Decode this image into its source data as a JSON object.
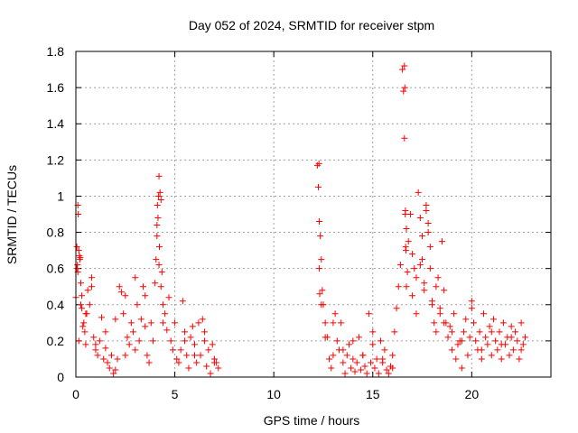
{
  "chart_data": {
    "type": "scatter",
    "title": "Day 052 of 2024, SRMTID for receiver stpm",
    "xlabel": "GPS time / hours",
    "ylabel": "SRMTID / TECUs",
    "xlim": [
      0,
      24
    ],
    "ylim": [
      0,
      1.8
    ],
    "xticks": [
      0,
      5,
      10,
      15,
      20
    ],
    "yticks": [
      0,
      0.2,
      0.4,
      0.6,
      0.8,
      1,
      1.2,
      1.4,
      1.6,
      1.8
    ],
    "ytick_labels": [
      "0",
      "0.2",
      "0.4",
      "0.6",
      "0.8",
      "1",
      "1.2",
      "1.4",
      "1.6",
      "1.8"
    ],
    "grid": true,
    "marker": "plus",
    "color": "#ff0000",
    "series": [
      {
        "name": "SRMTID",
        "x": [
          0.0,
          0.05,
          0.1,
          0.12,
          0.15,
          0.18,
          0.2,
          0.22,
          0.25,
          0.3,
          0.35,
          0.4,
          0.45,
          0.5,
          0.55,
          0.6,
          0.7,
          0.8,
          0.9,
          1.0,
          1.1,
          1.2,
          1.3,
          1.4,
          1.5,
          1.6,
          1.7,
          1.8,
          1.9,
          2.0,
          2.1,
          2.2,
          2.3,
          2.4,
          2.5,
          2.6,
          2.7,
          2.8,
          2.9,
          3.0,
          3.1,
          3.2,
          3.3,
          3.4,
          3.5,
          3.6,
          3.7,
          3.8,
          3.9,
          4.0,
          4.05,
          4.1,
          4.15,
          4.2,
          4.25,
          4.3,
          4.35,
          4.4,
          4.5,
          4.6,
          4.7,
          4.8,
          4.9,
          5.0,
          5.1,
          5.2,
          5.3,
          5.4,
          5.5,
          5.6,
          5.7,
          5.8,
          5.9,
          6.0,
          6.1,
          6.2,
          6.3,
          6.4,
          6.5,
          6.6,
          6.7,
          6.8,
          6.9,
          7.0,
          7.1,
          7.2,
          12.2,
          12.25,
          12.3,
          12.35,
          12.4,
          12.45,
          12.5,
          12.6,
          12.7,
          12.8,
          12.9,
          13.0,
          13.1,
          13.2,
          13.3,
          13.4,
          13.5,
          13.6,
          13.7,
          13.8,
          13.9,
          14.0,
          14.1,
          14.2,
          14.3,
          14.4,
          14.5,
          14.6,
          14.7,
          14.8,
          14.9,
          15.0,
          15.1,
          15.2,
          15.3,
          15.4,
          15.5,
          15.6,
          15.7,
          15.8,
          15.9,
          16.0,
          16.1,
          16.2,
          16.3,
          16.4,
          16.5,
          16.55,
          16.6,
          16.65,
          16.7,
          16.8,
          16.9,
          17.0,
          17.1,
          17.2,
          17.3,
          17.4,
          17.5,
          17.6,
          17.7,
          17.8,
          17.9,
          18.0,
          18.1,
          18.2,
          18.3,
          18.4,
          18.5,
          18.6,
          18.7,
          18.8,
          18.9,
          19.0,
          19.1,
          19.2,
          19.3,
          19.4,
          19.5,
          19.6,
          19.7,
          19.8,
          19.9,
          20.0,
          20.1,
          20.2,
          20.3,
          20.4,
          20.5,
          20.6,
          20.7,
          20.8,
          20.9,
          21.0,
          21.1,
          21.2,
          21.3,
          21.4,
          21.5,
          21.6,
          21.7,
          21.8,
          21.9,
          22.0,
          22.1,
          22.2,
          22.3,
          22.4,
          22.5,
          22.6,
          22.7,
          0.05,
          0.1,
          0.15,
          0.3,
          0.5,
          0.8,
          1.0,
          1.5,
          2.0,
          2.5,
          3.0,
          3.5,
          4.1,
          4.2,
          4.3,
          4.4,
          5.5,
          6.0,
          6.5,
          7.0,
          12.3,
          12.4,
          12.6,
          13.0,
          13.5,
          14.0,
          14.5,
          15.0,
          15.5,
          16.0,
          16.6,
          16.62,
          16.64,
          16.66,
          16.7,
          16.75,
          17.0,
          17.2,
          17.4,
          17.6,
          17.8,
          18.0,
          18.2,
          18.4,
          18.6,
          19.0,
          19.5,
          20.0,
          20.5,
          21.0,
          21.5,
          22.0,
          22.5,
          0.08,
          0.25,
          4.12,
          4.18,
          4.22,
          12.28,
          12.32,
          16.68,
          17.5,
          17.7,
          17.9
        ],
        "y": [
          0.44,
          0.72,
          0.95,
          0.9,
          0.7,
          0.67,
          0.65,
          0.66,
          0.52,
          0.45,
          0.28,
          0.3,
          0.25,
          0.18,
          0.35,
          0.48,
          0.4,
          0.55,
          0.22,
          0.15,
          0.12,
          0.2,
          0.33,
          0.1,
          0.16,
          0.08,
          0.05,
          0.12,
          0.02,
          0.04,
          0.1,
          0.5,
          0.47,
          0.35,
          0.12,
          0.22,
          0.18,
          0.3,
          0.25,
          0.55,
          0.4,
          0.2,
          0.32,
          0.5,
          0.45,
          0.12,
          0.08,
          0.3,
          0.2,
          0.52,
          0.65,
          0.78,
          0.88,
          1.11,
          1.02,
          0.98,
          0.58,
          0.4,
          0.35,
          0.26,
          0.44,
          0.2,
          0.15,
          0.3,
          0.1,
          0.08,
          0.15,
          0.42,
          0.2,
          0.12,
          0.05,
          0.22,
          0.28,
          0.18,
          0.08,
          0.3,
          0.12,
          0.32,
          0.25,
          0.06,
          0.15,
          0.02,
          0.18,
          0.1,
          0.08,
          0.05,
          1.17,
          1.05,
          0.86,
          0.78,
          0.65,
          0.48,
          0.4,
          0.3,
          0.22,
          0.1,
          0.05,
          0.12,
          0.35,
          0.2,
          0.15,
          0.3,
          0.08,
          0.02,
          0.12,
          0.18,
          0.05,
          0.1,
          0.03,
          0.08,
          0.22,
          0.04,
          0.12,
          0.06,
          0.02,
          0.35,
          0.08,
          0.18,
          0.05,
          0.1,
          0.02,
          0.2,
          0.08,
          0.15,
          0.04,
          0.02,
          0.06,
          0.12,
          0.25,
          0.38,
          0.5,
          0.62,
          1.7,
          1.58,
          1.32,
          0.92,
          0.82,
          0.75,
          0.9,
          0.68,
          0.6,
          0.55,
          1.02,
          0.88,
          0.65,
          0.52,
          0.95,
          0.85,
          0.72,
          0.4,
          0.3,
          0.25,
          0.55,
          0.35,
          0.75,
          0.48,
          0.3,
          0.22,
          0.28,
          0.15,
          0.35,
          0.1,
          0.18,
          0.2,
          0.05,
          0.25,
          0.32,
          0.12,
          0.22,
          0.42,
          0.3,
          0.2,
          0.15,
          0.25,
          0.1,
          0.35,
          0.22,
          0.18,
          0.28,
          0.12,
          0.32,
          0.2,
          0.15,
          0.25,
          0.1,
          0.3,
          0.18,
          0.22,
          0.12,
          0.28,
          0.15,
          0.25,
          0.2,
          0.1,
          0.3,
          0.18,
          0.22,
          0.6,
          0.58,
          0.2,
          0.38,
          0.35,
          0.5,
          0.18,
          0.25,
          0.32,
          0.45,
          0.15,
          0.28,
          0.84,
          0.62,
          0.5,
          0.3,
          0.25,
          0.12,
          0.2,
          0.08,
          0.6,
          0.4,
          0.22,
          0.3,
          0.15,
          0.2,
          0.12,
          0.25,
          0.1,
          0.05,
          1.72,
          1.6,
          0.9,
          0.72,
          0.5,
          0.58,
          0.45,
          0.35,
          0.62,
          0.48,
          0.8,
          0.42,
          0.5,
          0.38,
          0.3,
          0.25,
          0.2,
          0.38,
          0.15,
          0.25,
          0.18,
          0.22,
          0.15,
          0.62,
          0.4,
          0.95,
          1.0,
          0.72,
          1.18,
          0.46,
          0.7,
          0.78,
          0.92,
          0.6
        ]
      }
    ]
  }
}
